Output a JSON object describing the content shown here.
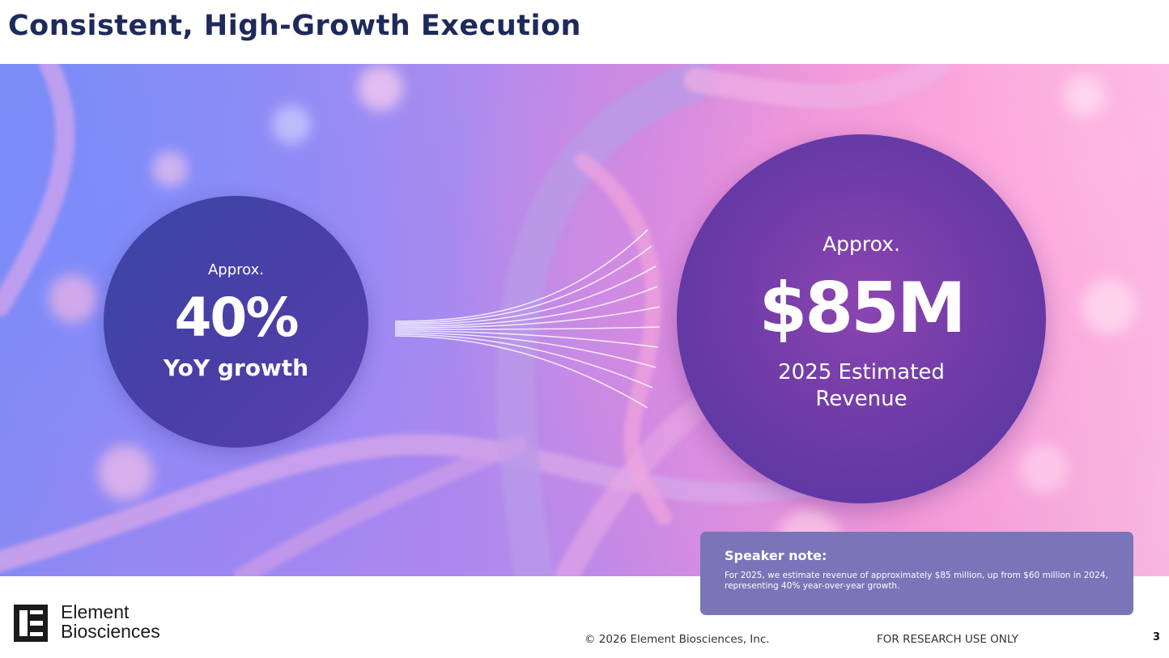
{
  "slide": {
    "title": "Consistent, High-Growth Execution",
    "page_number": "3"
  },
  "growth_stat": {
    "approx_label": "Approx.",
    "value": "40%",
    "caption": "YoY growth"
  },
  "revenue_stat": {
    "approx_label": "Approx.",
    "value": "$85M",
    "caption_line1": "2025 Estimated",
    "caption_line2": "Revenue"
  },
  "speaker_note": {
    "title": "Speaker note:",
    "body": "For 2025, we estimate revenue of approximately $85 million, up from $60 million in 2024, representing 40% year-over-year growth."
  },
  "footer": {
    "company_line1": "Element",
    "company_line2": "Biosciences",
    "copyright": "© 2026 Element Biosciences, Inc.",
    "disclaimer": "FOR RESEARCH USE ONLY"
  },
  "colors": {
    "title": "#1e2a5a",
    "growth_circle": "#4a3fa6",
    "revenue_circle": "#6a3aa6",
    "speaker_note_bg": "#7a74b8"
  },
  "icons": {
    "logo": "element-biosciences-logo-icon",
    "background": "dna-helix-image"
  }
}
